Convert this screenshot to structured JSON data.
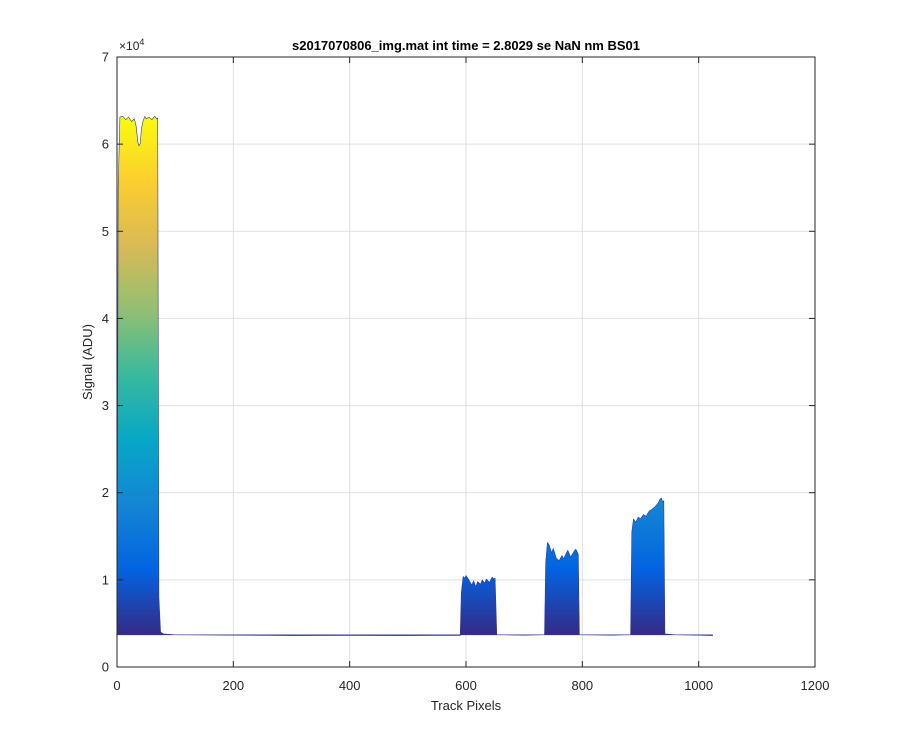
{
  "chart_data": {
    "type": "area",
    "title": "s2017070806_img.mat int time = 2.8029 se  NaN nm BS01",
    "xlabel": "Track Pixels",
    "ylabel": "Signal (ADU)",
    "y_exponent_base": "10",
    "y_exponent_power": "4",
    "xlim": [
      0,
      1200
    ],
    "ylim": [
      0,
      70000
    ],
    "x_ticks": [
      0,
      200,
      400,
      600,
      800,
      1000,
      1200
    ],
    "x_tick_labels": [
      "0",
      "200",
      "400",
      "600",
      "800",
      "1000",
      "1200"
    ],
    "y_ticks": [
      0,
      10000,
      20000,
      30000,
      40000,
      50000,
      60000,
      70000
    ],
    "y_tick_labels": [
      "0",
      "1",
      "2",
      "3",
      "4",
      "5",
      "6",
      "7"
    ],
    "grid": true,
    "colormap": "parula",
    "colormap_stops": [
      "#352a87",
      "#0363e1",
      "#1485d4",
      "#06a7c6",
      "#38b99e",
      "#92bf73",
      "#d9ba56",
      "#fcce2e",
      "#f9fb0e"
    ],
    "baseline_value": 3700,
    "series": [
      {
        "x": [
          0,
          2,
          5,
          10,
          15,
          20,
          25,
          30,
          33,
          36,
          38,
          40,
          42,
          45,
          48,
          50,
          55,
          60,
          65,
          68,
          70,
          72,
          75,
          80,
          100,
          200,
          300,
          400,
          500,
          550,
          590
        ],
        "y": [
          3700,
          55000,
          63100,
          63200,
          62800,
          63100,
          62600,
          62900,
          62000,
          60200,
          59800,
          60100,
          61800,
          62700,
          63200,
          62900,
          63100,
          62800,
          63200,
          62900,
          63000,
          8000,
          4000,
          3800,
          3700,
          3650,
          3600,
          3620,
          3600,
          3610,
          3620
        ]
      },
      {
        "x": [
          590,
          592,
          595,
          598,
          600,
          605,
          610,
          613,
          617,
          620,
          625,
          628,
          632,
          635,
          640,
          645,
          648,
          650,
          653
        ],
        "y": [
          3620,
          8500,
          10400,
          10200,
          10500,
          10000,
          9400,
          9900,
          9200,
          9800,
          9500,
          10000,
          9600,
          10100,
          9700,
          10300,
          10100,
          10200,
          3700
        ]
      },
      {
        "x": [
          653,
          700,
          735
        ],
        "y": [
          3700,
          3650,
          3700
        ]
      },
      {
        "x": [
          735,
          737,
          740,
          743,
          747,
          750,
          755,
          760,
          765,
          768,
          772,
          775,
          780,
          785,
          788,
          790,
          793,
          795
        ],
        "y": [
          3700,
          12000,
          14300,
          14000,
          13100,
          13600,
          12500,
          12200,
          12800,
          12400,
          13000,
          13400,
          12600,
          13200,
          13500,
          13400,
          12900,
          3700
        ]
      },
      {
        "x": [
          795,
          850,
          883
        ],
        "y": [
          3700,
          3650,
          3700
        ]
      },
      {
        "x": [
          883,
          885,
          888,
          892,
          896,
          900,
          905,
          910,
          915,
          920,
          925,
          930,
          933,
          936,
          938,
          940,
          942
        ],
        "y": [
          3700,
          15500,
          17000,
          16600,
          17200,
          17000,
          17500,
          17300,
          17900,
          18100,
          18400,
          18800,
          19200,
          19400,
          18900,
          19100,
          3800
        ]
      },
      {
        "x": [
          942,
          960,
          1000,
          1024
        ],
        "y": [
          3800,
          3700,
          3650,
          3600
        ]
      }
    ]
  }
}
